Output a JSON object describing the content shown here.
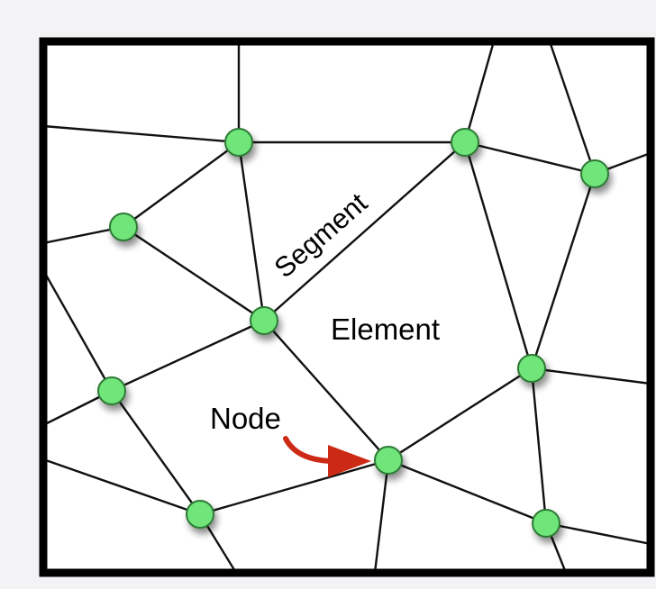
{
  "labels": {
    "segment": "Segment",
    "element": "Element",
    "node": "Node"
  },
  "colors": {
    "node_fill": "#6fe57a",
    "node_stroke": "#2d7a36",
    "edge": "#111111",
    "border": "#000000",
    "arrow": "#cc2a14",
    "segment_text": "#2346a8",
    "canvas": "#ffffff",
    "background": "#f3f3f5"
  },
  "icons": {
    "node": "green-circle",
    "pointer": "curved-red-arrow"
  }
}
